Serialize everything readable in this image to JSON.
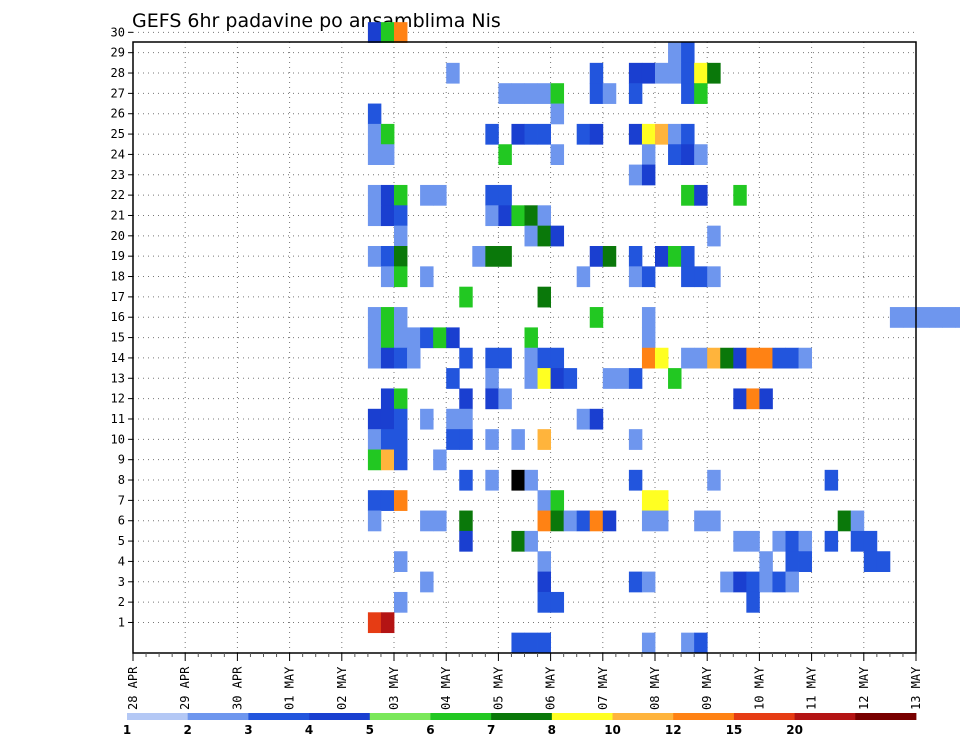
{
  "chart_data": {
    "type": "heatmap",
    "title": "GEFS 6hr padavine po ansamblima Nis",
    "x_tick_labels": [
      "28 APR",
      "29 APR",
      "30 APR",
      "01 MAY",
      "02 MAY",
      "03 MAY",
      "04 MAY",
      "05 MAY",
      "06 MAY",
      "07 MAY",
      "08 MAY",
      "09 MAY",
      "10 MAY",
      "11 MAY",
      "12 MAY",
      "13 MAY"
    ],
    "y_tick_labels": [
      "1",
      "2",
      "3",
      "4",
      "5",
      "6",
      "7",
      "8",
      "9",
      "10",
      "11",
      "12",
      "13",
      "14",
      "15",
      "16",
      "17",
      "18",
      "19",
      "20",
      "21",
      "22",
      "23",
      "24",
      "25",
      "26",
      "27",
      "28",
      "29",
      "30"
    ],
    "steps_per_day": 4,
    "colorbar": {
      "levels": [
        "1",
        "2",
        "3",
        "4",
        "5",
        "6",
        "7",
        "8",
        "10",
        "12",
        "15",
        "20"
      ],
      "colors": [
        "#b4c8f5",
        "#6e96ee",
        "#2255dd",
        "#1a3fd0",
        "#7ae85a",
        "#22c822",
        "#0a780a",
        "#ffff22",
        "#ffb43c",
        "#ff8214",
        "#e63c14",
        "#b41414",
        "#780000"
      ]
    },
    "grid": true,
    "cells": [
      [
        30,
        18,
        3
      ],
      [
        30,
        19,
        5
      ],
      [
        30,
        20,
        9
      ],
      [
        30,
        70,
        2
      ],
      [
        30,
        71,
        2
      ],
      [
        30,
        72,
        1
      ],
      [
        30,
        74,
        3
      ],
      [
        30,
        75,
        3
      ],
      [
        29,
        41,
        1
      ],
      [
        29,
        42,
        2
      ],
      [
        29,
        75,
        5
      ],
      [
        29,
        76,
        1
      ],
      [
        28,
        24,
        1
      ],
      [
        28,
        35,
        2
      ],
      [
        28,
        38,
        3
      ],
      [
        28,
        39,
        3
      ],
      [
        28,
        40,
        1
      ],
      [
        28,
        41,
        1
      ],
      [
        28,
        42,
        2
      ],
      [
        28,
        43,
        7
      ],
      [
        28,
        44,
        6
      ],
      [
        28,
        74,
        1
      ],
      [
        27,
        28,
        1
      ],
      [
        27,
        29,
        1
      ],
      [
        27,
        30,
        1
      ],
      [
        27,
        31,
        1
      ],
      [
        27,
        32,
        5
      ],
      [
        27,
        35,
        2
      ],
      [
        27,
        36,
        1
      ],
      [
        27,
        38,
        2
      ],
      [
        27,
        42,
        2
      ],
      [
        27,
        43,
        5
      ],
      [
        27,
        74,
        2
      ],
      [
        27,
        75,
        6
      ],
      [
        27,
        76,
        2
      ],
      [
        27,
        77,
        6
      ],
      [
        26,
        18,
        2
      ],
      [
        26,
        32,
        1
      ],
      [
        25,
        18,
        1
      ],
      [
        25,
        19,
        5
      ],
      [
        25,
        27,
        2
      ],
      [
        25,
        29,
        3
      ],
      [
        25,
        30,
        2
      ],
      [
        25,
        31,
        2
      ],
      [
        25,
        34,
        2
      ],
      [
        25,
        35,
        3
      ],
      [
        25,
        38,
        3
      ],
      [
        25,
        39,
        7
      ],
      [
        25,
        40,
        8
      ],
      [
        25,
        41,
        1
      ],
      [
        25,
        42,
        2
      ],
      [
        24,
        18,
        1
      ],
      [
        24,
        19,
        1
      ],
      [
        24,
        28,
        5
      ],
      [
        24,
        32,
        1
      ],
      [
        24,
        39,
        1
      ],
      [
        24,
        41,
        2
      ],
      [
        24,
        42,
        3
      ],
      [
        24,
        43,
        1
      ],
      [
        24,
        69,
        1
      ],
      [
        23,
        38,
        1
      ],
      [
        23,
        39,
        3
      ],
      [
        23,
        66,
        1
      ],
      [
        22,
        18,
        1
      ],
      [
        22,
        19,
        3
      ],
      [
        22,
        20,
        5
      ],
      [
        22,
        22,
        1
      ],
      [
        22,
        23,
        1
      ],
      [
        22,
        27,
        2
      ],
      [
        22,
        28,
        2
      ],
      [
        22,
        42,
        5
      ],
      [
        22,
        43,
        3
      ],
      [
        22,
        46,
        5
      ],
      [
        22,
        68,
        1
      ],
      [
        22,
        69,
        1
      ],
      [
        22,
        70,
        3
      ],
      [
        22,
        71,
        2
      ],
      [
        21,
        18,
        1
      ],
      [
        21,
        19,
        3
      ],
      [
        21,
        20,
        2
      ],
      [
        21,
        27,
        1
      ],
      [
        21,
        28,
        3
      ],
      [
        21,
        29,
        5
      ],
      [
        21,
        30,
        6
      ],
      [
        21,
        31,
        1
      ],
      [
        21,
        68,
        2
      ],
      [
        21,
        69,
        5
      ],
      [
        20,
        20,
        1
      ],
      [
        20,
        30,
        1
      ],
      [
        20,
        31,
        6
      ],
      [
        20,
        32,
        3
      ],
      [
        20,
        44,
        1
      ],
      [
        19,
        18,
        1
      ],
      [
        19,
        19,
        2
      ],
      [
        19,
        20,
        6
      ],
      [
        19,
        26,
        1
      ],
      [
        19,
        27,
        6
      ],
      [
        19,
        28,
        6
      ],
      [
        19,
        35,
        3
      ],
      [
        19,
        36,
        6
      ],
      [
        19,
        38,
        2
      ],
      [
        19,
        40,
        3
      ],
      [
        19,
        41,
        5
      ],
      [
        19,
        42,
        2
      ],
      [
        19,
        69,
        2
      ],
      [
        19,
        73,
        2
      ],
      [
        19,
        74,
        2
      ],
      [
        19,
        77,
        1
      ],
      [
        19,
        78,
        2
      ],
      [
        18,
        19,
        1
      ],
      [
        18,
        20,
        5
      ],
      [
        18,
        22,
        1
      ],
      [
        18,
        34,
        1
      ],
      [
        18,
        38,
        1
      ],
      [
        18,
        39,
        2
      ],
      [
        18,
        42,
        2
      ],
      [
        18,
        43,
        2
      ],
      [
        18,
        44,
        1
      ],
      [
        18,
        73,
        5
      ],
      [
        18,
        74,
        1
      ],
      [
        18,
        76,
        5
      ],
      [
        17,
        25,
        5
      ],
      [
        17,
        31,
        6
      ],
      [
        17,
        74,
        1
      ],
      [
        17,
        77,
        1
      ],
      [
        17,
        78,
        3
      ],
      [
        16,
        18,
        1
      ],
      [
        16,
        19,
        5
      ],
      [
        16,
        20,
        1
      ],
      [
        16,
        35,
        5
      ],
      [
        16,
        39,
        1
      ],
      [
        16,
        58,
        1
      ],
      [
        16,
        59,
        1
      ],
      [
        16,
        60,
        1
      ],
      [
        16,
        61,
        1
      ],
      [
        16,
        62,
        1
      ],
      [
        16,
        63,
        1
      ],
      [
        16,
        64,
        1
      ],
      [
        16,
        65,
        1
      ],
      [
        16,
        66,
        3
      ],
      [
        16,
        67,
        1
      ],
      [
        16,
        68,
        1
      ],
      [
        16,
        69,
        5
      ],
      [
        15,
        18,
        1
      ],
      [
        15,
        19,
        5
      ],
      [
        15,
        20,
        1
      ],
      [
        15,
        21,
        1
      ],
      [
        15,
        22,
        2
      ],
      [
        15,
        23,
        5
      ],
      [
        15,
        24,
        3
      ],
      [
        15,
        30,
        5
      ],
      [
        15,
        39,
        1
      ],
      [
        15,
        65,
        2
      ],
      [
        15,
        66,
        1
      ],
      [
        15,
        68,
        1
      ],
      [
        15,
        69,
        1
      ],
      [
        14,
        18,
        1
      ],
      [
        14,
        19,
        3
      ],
      [
        14,
        20,
        2
      ],
      [
        14,
        21,
        1
      ],
      [
        14,
        25,
        2
      ],
      [
        14,
        27,
        2
      ],
      [
        14,
        28,
        2
      ],
      [
        14,
        30,
        1
      ],
      [
        14,
        31,
        2
      ],
      [
        14,
        32,
        2
      ],
      [
        14,
        39,
        9
      ],
      [
        14,
        40,
        7
      ],
      [
        14,
        42,
        1
      ],
      [
        14,
        43,
        1
      ],
      [
        14,
        44,
        8
      ],
      [
        14,
        45,
        6
      ],
      [
        14,
        46,
        3
      ],
      [
        14,
        47,
        9
      ],
      [
        14,
        48,
        9
      ],
      [
        14,
        49,
        2
      ],
      [
        14,
        50,
        2
      ],
      [
        14,
        51,
        1
      ],
      [
        13,
        24,
        2
      ],
      [
        13,
        27,
        1
      ],
      [
        13,
        30,
        1
      ],
      [
        13,
        31,
        7
      ],
      [
        13,
        32,
        3
      ],
      [
        13,
        33,
        2
      ],
      [
        13,
        36,
        1
      ],
      [
        13,
        37,
        1
      ],
      [
        13,
        38,
        2
      ],
      [
        13,
        41,
        5
      ],
      [
        13,
        74,
        1
      ],
      [
        13,
        75,
        3
      ],
      [
        13,
        76,
        1
      ],
      [
        13,
        77,
        1
      ],
      [
        13,
        78,
        1
      ],
      [
        12,
        19,
        3
      ],
      [
        12,
        20,
        5
      ],
      [
        12,
        25,
        3
      ],
      [
        12,
        27,
        3
      ],
      [
        12,
        28,
        1
      ],
      [
        12,
        46,
        3
      ],
      [
        12,
        47,
        9
      ],
      [
        12,
        48,
        3
      ],
      [
        12,
        77,
        1
      ],
      [
        12,
        78,
        5
      ],
      [
        11,
        18,
        3
      ],
      [
        11,
        19,
        3
      ],
      [
        11,
        20,
        2
      ],
      [
        11,
        22,
        1
      ],
      [
        11,
        24,
        1
      ],
      [
        11,
        25,
        1
      ],
      [
        11,
        34,
        1
      ],
      [
        11,
        35,
        3
      ],
      [
        11,
        74,
        1
      ],
      [
        11,
        75,
        6
      ],
      [
        11,
        76,
        2
      ],
      [
        11,
        77,
        2
      ],
      [
        11,
        78,
        2
      ],
      [
        10,
        18,
        1
      ],
      [
        10,
        19,
        2
      ],
      [
        10,
        20,
        2
      ],
      [
        10,
        24,
        2
      ],
      [
        10,
        25,
        2
      ],
      [
        10,
        27,
        1
      ],
      [
        10,
        29,
        1
      ],
      [
        10,
        31,
        8
      ],
      [
        10,
        38,
        1
      ],
      [
        9,
        18,
        5
      ],
      [
        9,
        19,
        8
      ],
      [
        9,
        20,
        2
      ],
      [
        9,
        23,
        1
      ],
      [
        8,
        25,
        2
      ],
      [
        8,
        27,
        1
      ],
      [
        8,
        29,
        13
      ],
      [
        8,
        30,
        1
      ],
      [
        8,
        38,
        2
      ],
      [
        8,
        44,
        1
      ],
      [
        8,
        53,
        2
      ],
      [
        8,
        78,
        3
      ],
      [
        8,
        79,
        2
      ],
      [
        7,
        18,
        2
      ],
      [
        7,
        19,
        2
      ],
      [
        7,
        20,
        9
      ],
      [
        7,
        31,
        1
      ],
      [
        7,
        32,
        5
      ],
      [
        7,
        39,
        7
      ],
      [
        7,
        40,
        7
      ],
      [
        7,
        78,
        1
      ],
      [
        6,
        18,
        1
      ],
      [
        6,
        22,
        1
      ],
      [
        6,
        23,
        1
      ],
      [
        6,
        25,
        6
      ],
      [
        6,
        31,
        9
      ],
      [
        6,
        32,
        6
      ],
      [
        6,
        33,
        1
      ],
      [
        6,
        34,
        2
      ],
      [
        6,
        35,
        9
      ],
      [
        6,
        36,
        3
      ],
      [
        6,
        39,
        1
      ],
      [
        6,
        40,
        1
      ],
      [
        6,
        43,
        1
      ],
      [
        6,
        44,
        1
      ],
      [
        6,
        54,
        6
      ],
      [
        6,
        55,
        1
      ],
      [
        5,
        25,
        3
      ],
      [
        5,
        29,
        6
      ],
      [
        5,
        30,
        1
      ],
      [
        5,
        46,
        1
      ],
      [
        5,
        47,
        1
      ],
      [
        5,
        49,
        1
      ],
      [
        5,
        50,
        2
      ],
      [
        5,
        51,
        1
      ],
      [
        5,
        53,
        2
      ],
      [
        5,
        55,
        2
      ],
      [
        5,
        56,
        2
      ],
      [
        4,
        20,
        1
      ],
      [
        4,
        31,
        1
      ],
      [
        4,
        48,
        1
      ],
      [
        4,
        50,
        2
      ],
      [
        4,
        51,
        2
      ],
      [
        4,
        56,
        2
      ],
      [
        4,
        57,
        2
      ],
      [
        3,
        22,
        1
      ],
      [
        3,
        31,
        3
      ],
      [
        3,
        38,
        2
      ],
      [
        3,
        39,
        1
      ],
      [
        3,
        45,
        1
      ],
      [
        3,
        46,
        3
      ],
      [
        3,
        47,
        2
      ],
      [
        3,
        48,
        1
      ],
      [
        3,
        49,
        2
      ],
      [
        3,
        50,
        1
      ],
      [
        2,
        20,
        1
      ],
      [
        2,
        31,
        2
      ],
      [
        2,
        32,
        2
      ],
      [
        2,
        47,
        2
      ],
      [
        1,
        18,
        10
      ],
      [
        1,
        19,
        11
      ],
      [
        0,
        29,
        2
      ],
      [
        0,
        30,
        2
      ],
      [
        0,
        31,
        2
      ],
      [
        0,
        39,
        1
      ],
      [
        0,
        42,
        1
      ],
      [
        0,
        43,
        2
      ]
    ]
  }
}
